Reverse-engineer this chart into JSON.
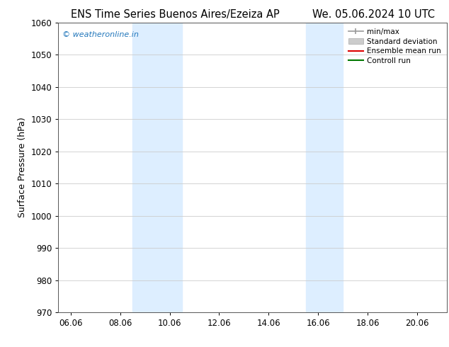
{
  "title_left": "ENS Time Series Buenos Aires/Ezeiza AP",
  "title_right": "We. 05.06.2024 10 UTC",
  "ylabel": "Surface Pressure (hPa)",
  "ylim": [
    970,
    1060
  ],
  "yticks": [
    970,
    980,
    990,
    1000,
    1010,
    1020,
    1030,
    1040,
    1050,
    1060
  ],
  "xlim_start": 5.5,
  "xlim_end": 21.2,
  "xtick_labels": [
    "06.06",
    "08.06",
    "10.06",
    "12.06",
    "14.06",
    "16.06",
    "18.06",
    "20.06"
  ],
  "xtick_positions": [
    6.0,
    8.0,
    10.0,
    12.0,
    14.0,
    16.0,
    18.0,
    20.0
  ],
  "shaded_bands": [
    {
      "x_start": 8.5,
      "x_end": 10.5,
      "color": "#ddeeff"
    },
    {
      "x_start": 15.5,
      "x_end": 17.0,
      "color": "#ddeeff"
    }
  ],
  "watermark_text": "© weatheronline.in",
  "watermark_color": "#2277bb",
  "legend_entries": [
    {
      "label": "min/max",
      "color": "#999999",
      "type": "line_caps"
    },
    {
      "label": "Standard deviation",
      "color": "#cccccc",
      "type": "band"
    },
    {
      "label": "Ensemble mean run",
      "color": "#dd0000",
      "type": "line"
    },
    {
      "label": "Controll run",
      "color": "#007700",
      "type": "line"
    }
  ],
  "background_color": "#ffffff",
  "plot_bg_color": "#ffffff",
  "grid_color": "#cccccc",
  "title_fontsize": 10.5,
  "ylabel_fontsize": 9,
  "tick_fontsize": 8.5,
  "watermark_fontsize": 8,
  "legend_fontsize": 7.5
}
